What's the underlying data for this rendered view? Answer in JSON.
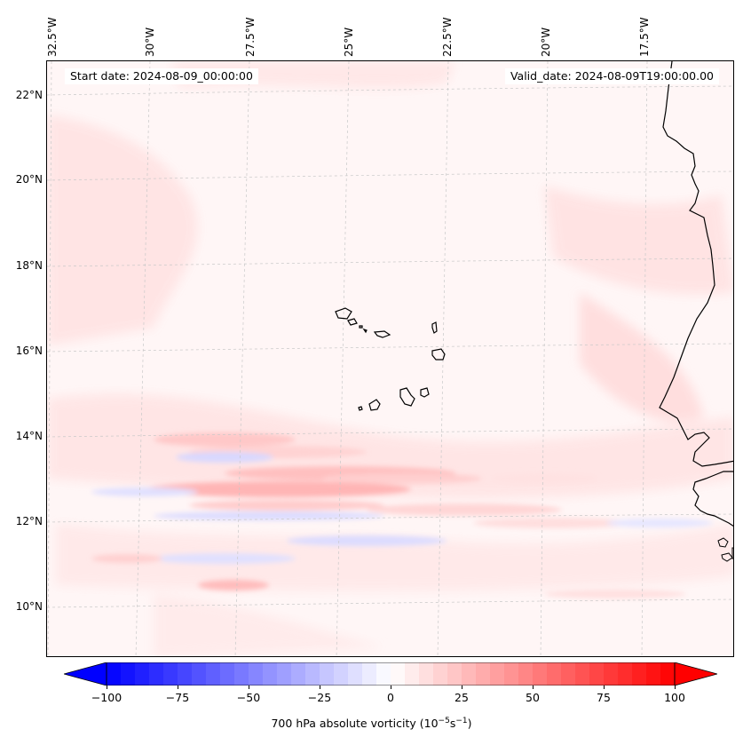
{
  "map": {
    "start_date": "Start date: 2024-08-09_00:00:00",
    "valid_date": "Valid_date: 2024-08-09T19:00:00.00",
    "lon_labels": [
      "32.5°W",
      "30°W",
      "27.5°W",
      "25°W",
      "22.5°W",
      "20°W",
      "17.5°W"
    ],
    "lat_labels": [
      "22°N",
      "20°N",
      "18°N",
      "16°N",
      "14°N",
      "12°N",
      "10°N"
    ],
    "region": "Cabo Verde / West African coast",
    "colors": {
      "coast": "#000000",
      "grid": "#c8c8c8",
      "positive": "#ff0000",
      "negative": "#0000ff",
      "neutral": "#ffffff"
    }
  },
  "colorbar": {
    "ticks": [
      "−100",
      "−75",
      "−50",
      "−25",
      "0",
      "25",
      "50",
      "75",
      "100"
    ],
    "min": -100,
    "max": 100,
    "step": 5,
    "label_prefix": "700 hPa absolute vorticity (10",
    "label_exp1": "−5",
    "label_mid": "s",
    "label_exp2": "−1",
    "label_suffix": ")"
  }
}
